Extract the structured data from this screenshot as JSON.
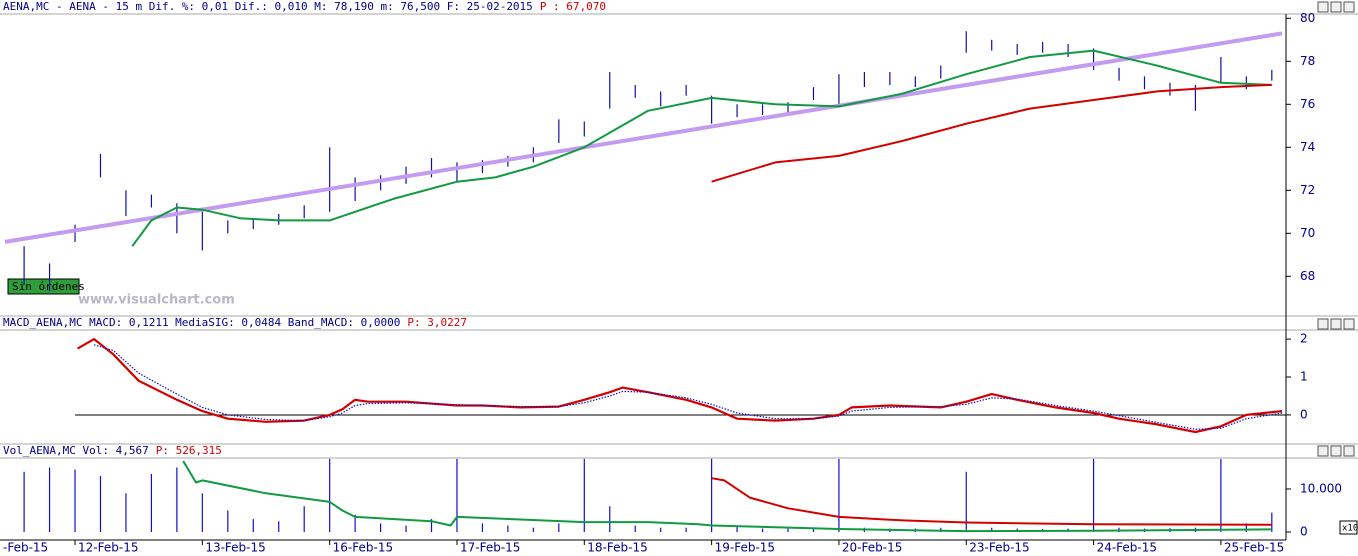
{
  "chart_data": [
    {
      "type": "hilo",
      "header": "AENA,MC - AENA -  15 m Dif. %: 0,01 Dif.: 0,010 M: 78,190 m: 76,500 F: 25-02-2015",
      "header_price": "P : 67,070",
      "watermark": "www.visualchart.com",
      "status": "Sin órdenes",
      "color": "#1010a0",
      "x": [
        -0.4,
        -0.2,
        0,
        0.2,
        0.4,
        0.6,
        0.8,
        1,
        1.2,
        1.4,
        1.6,
        1.8,
        2,
        2.2,
        2.4,
        2.6,
        2.8,
        3,
        3.2,
        3.4,
        3.6,
        3.8,
        4,
        4.2,
        4.4,
        4.6,
        4.8,
        5,
        5.2,
        5.4,
        5.6,
        5.8,
        6,
        6.2,
        6.4,
        6.6,
        6.8,
        7,
        7.2,
        7.4,
        7.6,
        7.8,
        8,
        8.2,
        8.4,
        8.6,
        8.8,
        9,
        9.2,
        9.4
      ],
      "high": [
        69.4,
        68.6,
        70.4,
        73.7,
        72.0,
        71.8,
        71.4,
        71.2,
        70.6,
        70.7,
        70.9,
        71.3,
        74.0,
        72.6,
        72.7,
        73.1,
        73.5,
        73.3,
        73.4,
        73.6,
        74.0,
        75.3,
        75.2,
        77.5,
        76.9,
        76.6,
        76.9,
        76.4,
        76.0,
        76.0,
        76.1,
        76.8,
        77.4,
        77.5,
        77.5,
        77.3,
        77.8,
        79.4,
        79.0,
        78.8,
        78.9,
        78.8,
        78.6,
        77.7,
        77.3,
        77.0,
        76.9,
        78.2,
        77.3,
        77.6
      ],
      "low": [
        67.6,
        67.3,
        69.6,
        72.6,
        70.8,
        71.2,
        70.0,
        69.2,
        70.0,
        70.2,
        70.4,
        70.7,
        71.0,
        71.5,
        72.0,
        72.3,
        72.6,
        72.4,
        72.8,
        73.1,
        73.3,
        74.2,
        74.5,
        75.8,
        76.3,
        75.9,
        76.4,
        75.1,
        75.4,
        75.5,
        75.6,
        76.2,
        76.0,
        76.8,
        76.9,
        76.8,
        77.2,
        78.4,
        78.5,
        78.3,
        78.4,
        78.2,
        77.6,
        77.1,
        76.7,
        76.4,
        75.7,
        77.0,
        76.7,
        77.1
      ],
      "lines": [
        {
          "color": "#c39bf0",
          "x": [
            -0.55,
            9.48
          ],
          "values": [
            69.6,
            79.3
          ]
        },
        {
          "color": "#129a40",
          "x": [
            0.45,
            0.6,
            0.8,
            1.0,
            1.3,
            1.6,
            2.0,
            2.5,
            3.0,
            3.3,
            3.6,
            4.0,
            4.5,
            5.0,
            5.5,
            6.0,
            6.5,
            7.0,
            7.5,
            8.0,
            8.5,
            9.0,
            9.4
          ],
          "values": [
            69.4,
            70.6,
            71.2,
            71.1,
            70.7,
            70.6,
            70.6,
            71.6,
            72.4,
            72.6,
            73.1,
            74.0,
            75.7,
            76.3,
            76.0,
            75.9,
            76.5,
            77.4,
            78.2,
            78.5,
            77.8,
            77.0,
            76.9
          ]
        },
        {
          "color": "#d40000",
          "x": [
            5.0,
            5.5,
            6.0,
            6.5,
            7.0,
            7.5,
            8.0,
            8.5,
            9.0,
            9.4
          ],
          "values": [
            72.4,
            73.3,
            73.6,
            74.3,
            75.1,
            75.8,
            76.2,
            76.6,
            76.8,
            76.9
          ]
        }
      ],
      "xlim": [
        -0.55,
        9.48
      ],
      "ylim": [
        66.2,
        80.2
      ],
      "yticks": [
        68,
        70,
        72,
        74,
        76,
        78,
        80
      ]
    },
    {
      "type": "line",
      "header": "MACD_AENA,MC MACD: 0,1211 MediaSIG: 0,0484 Band_MACD: 0,0000",
      "header_price": "P: 3,0227",
      "baseline": 0,
      "series": [
        {
          "color": "#d40000",
          "style": "solid",
          "x": [
            0.02,
            0.15,
            0.3,
            0.5,
            0.8,
            1.0,
            1.2,
            1.5,
            1.8,
            2.0,
            2.1,
            2.2,
            2.3,
            2.6,
            3.0,
            3.2,
            3.5,
            3.8,
            4.0,
            4.2,
            4.3,
            4.5,
            4.8,
            5.0,
            5.2,
            5.5,
            5.8,
            6.0,
            6.1,
            6.4,
            6.8,
            7.0,
            7.2,
            7.4,
            7.7,
            8.0,
            8.2,
            8.5,
            8.8,
            9.0,
            9.2,
            9.48
          ],
          "values": [
            1.75,
            2.0,
            1.6,
            0.9,
            0.4,
            0.1,
            -0.1,
            -0.18,
            -0.15,
            0,
            0.15,
            0.4,
            0.35,
            0.35,
            0.25,
            0.25,
            0.2,
            0.22,
            0.4,
            0.6,
            0.72,
            0.6,
            0.4,
            0.2,
            -0.1,
            -0.15,
            -0.1,
            0,
            0.2,
            0.25,
            0.2,
            0.35,
            0.55,
            0.4,
            0.2,
            0.05,
            -0.1,
            -0.25,
            -0.45,
            -0.3,
            0,
            0.1
          ]
        },
        {
          "color": "#1010c0",
          "style": "dotted",
          "x": [
            0.02,
            0.15,
            0.3,
            0.5,
            0.8,
            1.0,
            1.2,
            1.5,
            1.8,
            2.0,
            2.1,
            2.2,
            2.3,
            2.6,
            3.0,
            3.2,
            3.5,
            3.8,
            4.0,
            4.2,
            4.3,
            4.5,
            4.8,
            5.0,
            5.2,
            5.5,
            5.8,
            6.0,
            6.1,
            6.4,
            6.8,
            7.0,
            7.2,
            7.4,
            7.7,
            8.0,
            8.2,
            8.5,
            8.8,
            9.0,
            9.2,
            9.48
          ],
          "values": [
            null,
            1.85,
            1.7,
            1.1,
            0.55,
            0.2,
            0,
            -0.12,
            -0.15,
            -0.05,
            0.05,
            0.25,
            0.3,
            0.32,
            0.27,
            0.25,
            0.22,
            0.22,
            0.32,
            0.5,
            0.62,
            0.6,
            0.45,
            0.28,
            0.05,
            -0.1,
            -0.1,
            -0.03,
            0.1,
            0.2,
            0.22,
            0.28,
            0.45,
            0.42,
            0.25,
            0.1,
            -0.02,
            -0.2,
            -0.38,
            -0.35,
            -0.1,
            0.05
          ]
        }
      ],
      "xlim": [
        -0.55,
        9.48
      ],
      "ylim": [
        -0.74,
        2.24
      ],
      "yticks": [
        0,
        1,
        2
      ]
    },
    {
      "type": "bar",
      "header": "Vol_AENA,MC Vol: 4,567",
      "header_price": "P: 526,315",
      "scale_note": "x10",
      "color": "#1010d0",
      "x": [
        -0.4,
        -0.2,
        0,
        0.2,
        0.4,
        0.6,
        0.8,
        1,
        1.2,
        1.4,
        1.6,
        1.8,
        2,
        2.2,
        2.4,
        2.6,
        2.8,
        3,
        3.2,
        3.4,
        3.6,
        3.8,
        4,
        4.2,
        4.4,
        4.6,
        4.8,
        5,
        5.2,
        5.4,
        5.6,
        5.8,
        6,
        6.2,
        6.4,
        6.6,
        6.8,
        7,
        7.2,
        7.4,
        7.6,
        7.8,
        8,
        8.2,
        8.4,
        8.6,
        8.8,
        9,
        9.2,
        9.4
      ],
      "values": [
        14000,
        15000,
        14500,
        13000,
        9000,
        13500,
        15000,
        9000,
        5000,
        3000,
        2500,
        6000,
        17000,
        4000,
        2000,
        1500,
        3000,
        17000,
        2000,
        1500,
        1000,
        2000,
        17000,
        6000,
        1500,
        1000,
        1000,
        17000,
        1500,
        800,
        800,
        1000,
        17000,
        1000,
        800,
        800,
        1000,
        14000,
        1000,
        800,
        700,
        800,
        17000,
        1000,
        800,
        900,
        1000,
        17000,
        2000,
        4500
      ],
      "lines": [
        {
          "color": "#129a40",
          "x": [
            0.85,
            0.95,
            1.0,
            1.5,
            2.0,
            2.1,
            2.2,
            2.8,
            2.95,
            3.0,
            4.0,
            4.5,
            4.9,
            5.0,
            6.0,
            7.0,
            8.0,
            9.4
          ],
          "values": [
            16500,
            11500,
            12000,
            9000,
            7000,
            5000,
            3500,
            2500,
            1500,
            3500,
            2300,
            2300,
            1800,
            1500,
            700,
            200,
            300,
            600
          ]
        },
        {
          "color": "#d40000",
          "x": [
            5.0,
            5.1,
            5.3,
            5.6,
            6.0,
            6.5,
            7.0,
            8.0,
            9.4
          ],
          "values": [
            12500,
            12000,
            8000,
            5500,
            3500,
            2700,
            2200,
            1800,
            1700
          ]
        }
      ],
      "xlim": [
        -0.55,
        9.48
      ],
      "ylim": [
        -1860,
        17200
      ],
      "yticks": [
        0,
        {
          "value": 10000,
          "label": "10.000"
        }
      ],
      "xticks": [
        {
          "value": -1,
          "label": "-Feb-15"
        },
        {
          "value": 0,
          "label": "12-Feb-15"
        },
        {
          "value": 1,
          "label": "13-Feb-15"
        },
        {
          "value": 2,
          "label": "16-Feb-15"
        },
        {
          "value": 3,
          "label": "17-Feb-15"
        },
        {
          "value": 4,
          "label": "18-Feb-15"
        },
        {
          "value": 5,
          "label": "19-Feb-15"
        },
        {
          "value": 6,
          "label": "20-Feb-15"
        },
        {
          "value": 7,
          "label": "23-Feb-15"
        },
        {
          "value": 8,
          "label": "24-Feb-15"
        },
        {
          "value": 9,
          "label": "25-Feb-15"
        }
      ]
    }
  ]
}
